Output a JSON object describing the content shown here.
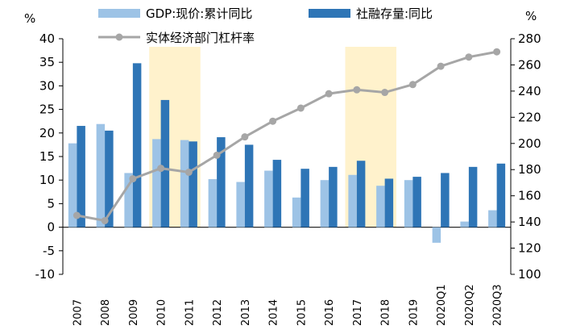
{
  "chart_data": {
    "type": "bar",
    "categories": [
      "2007",
      "2008",
      "2009",
      "2010",
      "2011",
      "2012",
      "2013",
      "2014",
      "2015",
      "2016",
      "2017",
      "2018",
      "2019",
      "2020Q1",
      "2020Q2",
      "2020Q3"
    ],
    "left_axis": {
      "unit": "%",
      "ylim": [
        -10,
        40
      ],
      "ticks": [
        -10,
        -5,
        0,
        5,
        10,
        15,
        20,
        25,
        30,
        35,
        40
      ]
    },
    "right_axis": {
      "unit": "%",
      "ylim": [
        100,
        280
      ],
      "ticks": [
        100,
        120,
        140,
        160,
        180,
        200,
        220,
        240,
        260,
        280
      ]
    },
    "series": [
      {
        "name": "GDP:现价:累计同比",
        "kind": "bar",
        "axis": "left",
        "color": "#9DC3E6",
        "values": [
          17.8,
          21.9,
          11.5,
          18.7,
          18.5,
          10.2,
          9.6,
          12.0,
          6.3,
          10.0,
          11.1,
          8.8,
          10.0,
          -3.3,
          1.2,
          3.6
        ]
      },
      {
        "name": "社融存量:同比",
        "kind": "bar",
        "axis": "left",
        "color": "#2E75B6",
        "values": [
          21.5,
          20.5,
          34.8,
          27.0,
          18.2,
          19.1,
          17.5,
          14.3,
          12.4,
          12.8,
          14.1,
          10.3,
          10.7,
          11.5,
          12.8,
          13.5
        ]
      },
      {
        "name": "实体经济部门杠杆率",
        "kind": "line",
        "axis": "right",
        "color": "#A6A6A6",
        "values": [
          145,
          141,
          173,
          181,
          178,
          191,
          205,
          217,
          227,
          238,
          241,
          239,
          245,
          259,
          266,
          270
        ]
      }
    ],
    "highlights": [
      {
        "from": "2010",
        "to": "2011",
        "color": "#FFF2CC"
      },
      {
        "from": "2017",
        "to": "2018",
        "color": "#FFF2CC"
      }
    ],
    "legend_position": "top",
    "grid": false
  }
}
